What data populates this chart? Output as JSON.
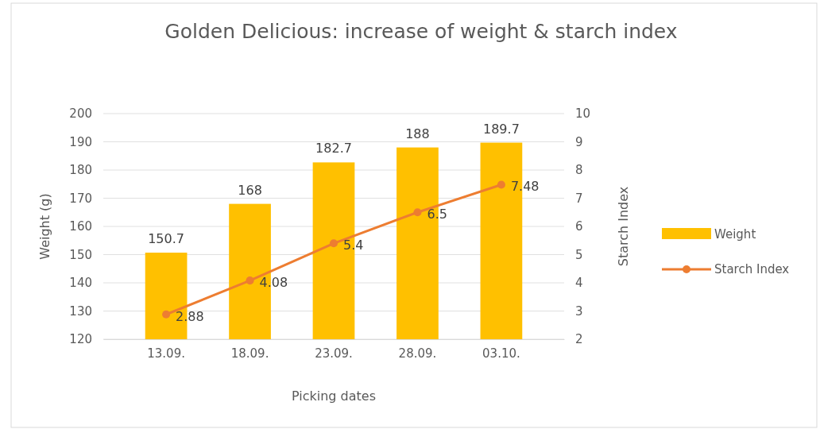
{
  "chart_data": {
    "type": "bar",
    "title": "Golden Delicious: increase of weight & starch index",
    "xlabel": "Picking dates",
    "ylabel": "Weight (g)",
    "y2label": "Starch Index",
    "categories": [
      "13.09.",
      "18.09.",
      "23.09.",
      "28.09.",
      "03.10."
    ],
    "series": [
      {
        "name": "Weight",
        "color": "#ffc000",
        "values": [
          150.7,
          168,
          182.7,
          188,
          189.7
        ]
      },
      {
        "name": "Starch Index",
        "type": "line",
        "axis": "y2",
        "color": "#ed7d31",
        "values": [
          2.88,
          4.08,
          5.4,
          6.5,
          7.48
        ]
      }
    ],
    "ylim": [
      120,
      200
    ],
    "yticks": [
      120,
      130,
      140,
      150,
      160,
      170,
      180,
      190,
      200
    ],
    "y2lim": [
      2,
      10
    ],
    "y2ticks": [
      2,
      3,
      4,
      5,
      6,
      7,
      8,
      9,
      10
    ],
    "grid": "y",
    "legend": "right",
    "marker": "circle",
    "data_labels": true
  }
}
